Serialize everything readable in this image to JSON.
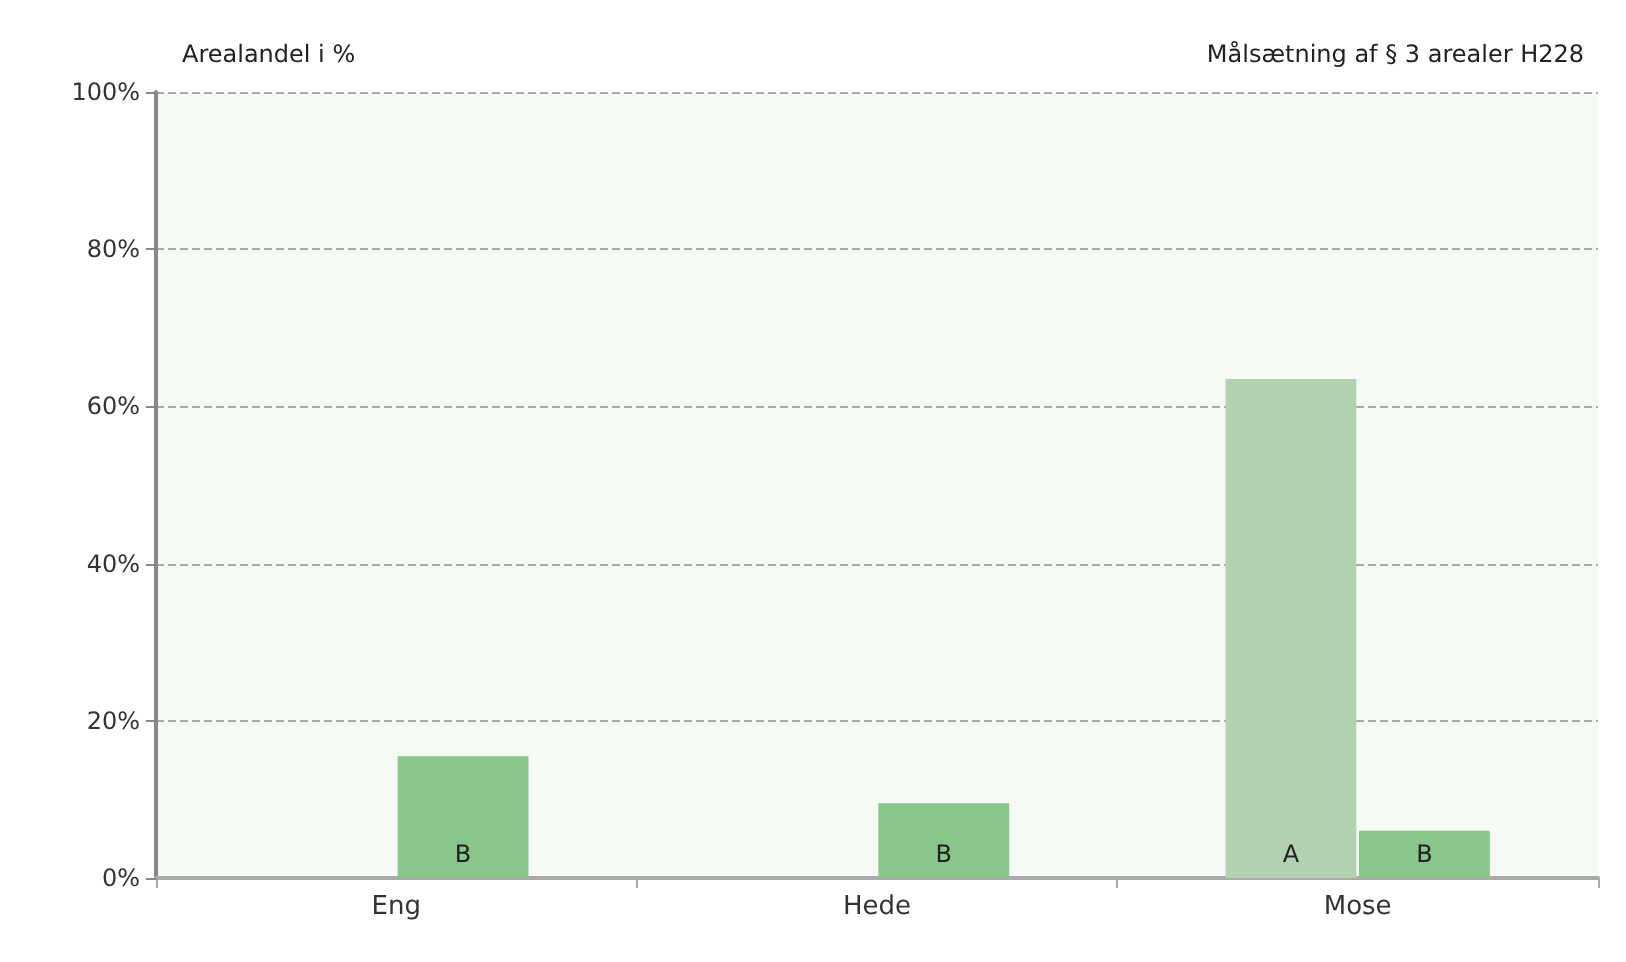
{
  "chart_data": {
    "type": "bar",
    "title": "Målsætning af § 3 arealer H228",
    "ylabel": "Arealandel i %",
    "categories": [
      "Eng",
      "Hede",
      "Mose"
    ],
    "series": [
      {
        "name": "A",
        "color": "#b3d1b0",
        "values": [
          null,
          null,
          63.5
        ]
      },
      {
        "name": "B",
        "color": "#88c68c",
        "values": [
          15.5,
          9.5,
          6
        ]
      }
    ],
    "ylim": [
      0,
      100
    ],
    "yticks": [
      {
        "value": 0,
        "label": "0%"
      },
      {
        "value": 20,
        "label": "20%"
      },
      {
        "value": 40,
        "label": "40%"
      },
      {
        "value": 60,
        "label": "60%"
      },
      {
        "value": 80,
        "label": "80%"
      },
      {
        "value": 100,
        "label": "100%"
      }
    ],
    "grid": "y",
    "legend": false
  }
}
